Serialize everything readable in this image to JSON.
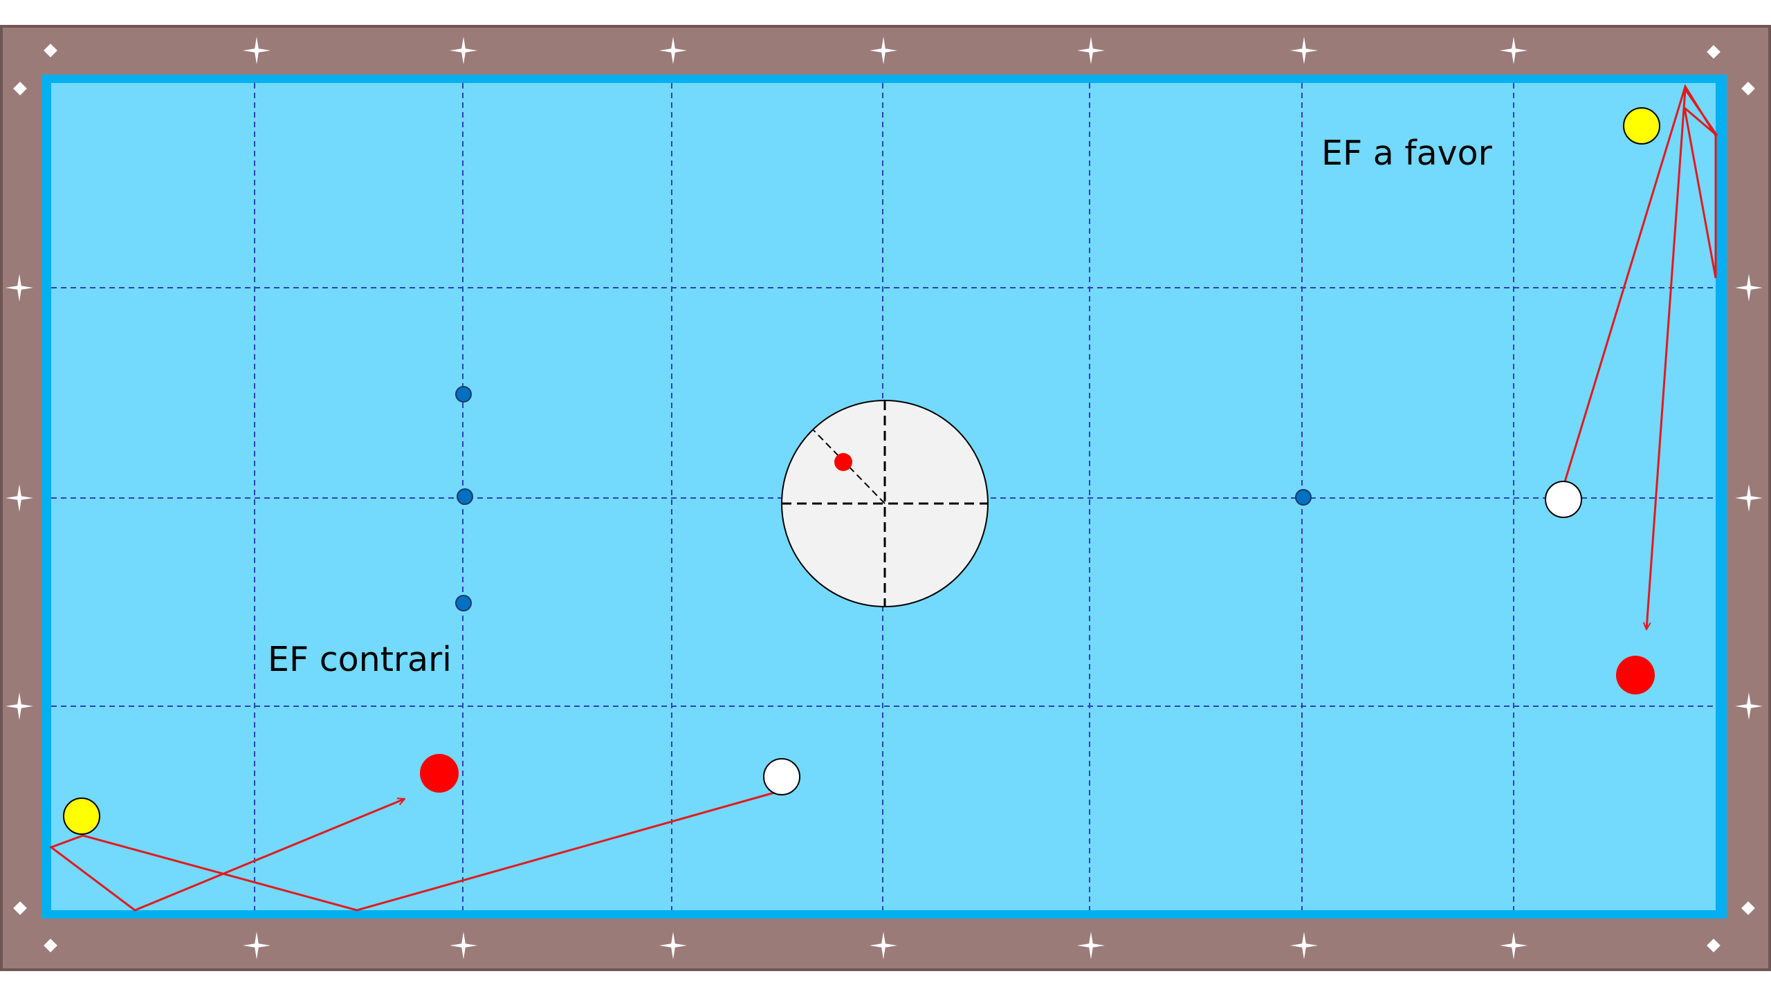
{
  "labels": {
    "ef_a_favor": "EF a favor",
    "ef_contrari": "EF contrari"
  },
  "colors": {
    "rail": "#9b7b78",
    "cushion": "#00b0f0",
    "cloth": "#73d9fd",
    "grid_line": "#2d3fbf",
    "diamond_marker": "#ffffff",
    "ball_yellow": "#ffff00",
    "ball_white": "#ffffff",
    "ball_red": "#ff0000",
    "trajectory": "#e3191e",
    "aim_point": "#0070c0",
    "cue_ball_diagram": "#f2f2f2"
  },
  "icons": {
    "corner_marker": "diamond-dot-icon",
    "rail_marker": "four-point-star-icon"
  }
}
